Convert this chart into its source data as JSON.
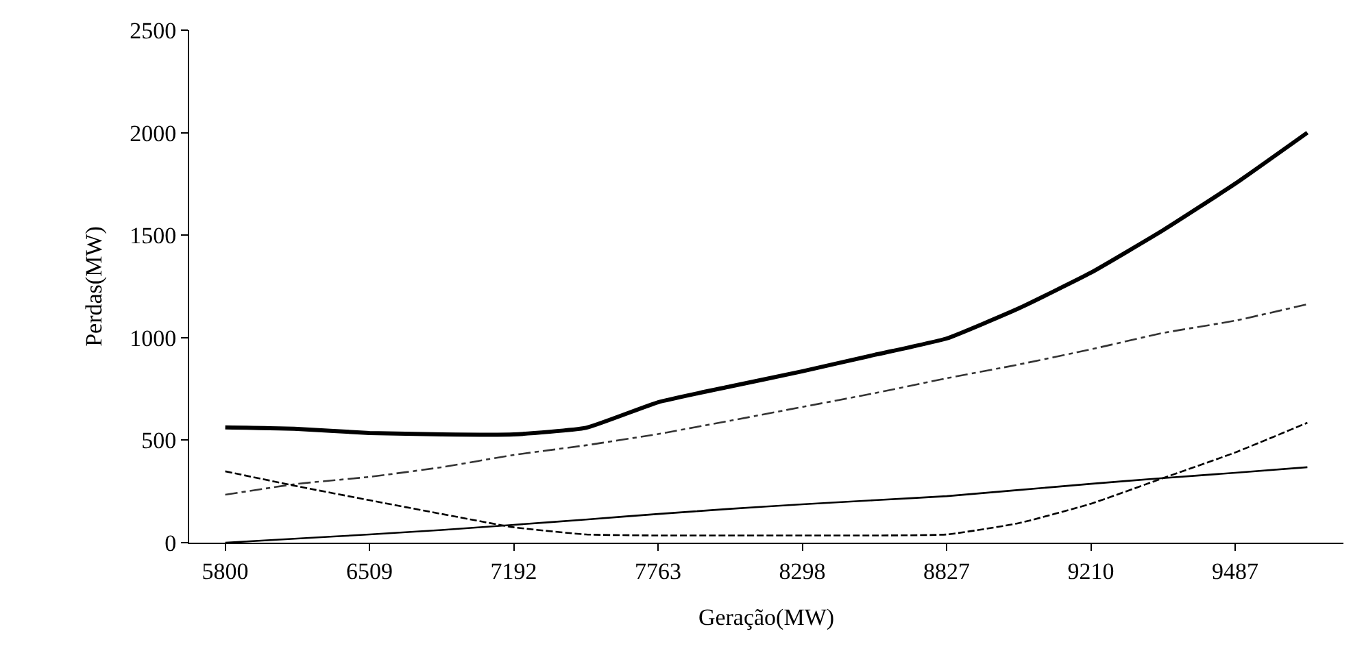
{
  "chart_data": {
    "type": "line",
    "xlabel": "Geração(MW)",
    "ylabel": "Perdas(MW)",
    "categories": [
      "5800",
      null,
      "6509",
      null,
      "7192",
      null,
      "7763",
      null,
      "8298",
      null,
      "8827",
      null,
      "9210",
      null,
      "9487",
      null
    ],
    "ylim": [
      0,
      2500
    ],
    "yticks": [
      0,
      500,
      1000,
      1500,
      2000,
      2500
    ],
    "marker": "none",
    "series": [
      {
        "color": "#000000",
        "line_style": "solid",
        "values": [
          562,
          555,
          535,
          528,
          528,
          560,
          685,
          762,
          836,
          916,
          996,
          1143,
          1317,
          1524,
          1751,
          2000
        ]
      },
      {
        "color": "#333333",
        "line_style": "dashdot",
        "values": [
          234,
          287,
          321,
          368,
          428,
          475,
          530,
          595,
          662,
          729,
          802,
          869,
          943,
          1023,
          1083,
          1163
        ]
      },
      {
        "color": "#000000",
        "line_style": "dashed",
        "values": [
          348,
          275,
          207,
          140,
          75,
          40,
          35,
          35,
          35,
          35,
          40,
          95,
          190,
          315,
          440,
          585
        ]
      },
      {
        "color": "#000000",
        "line_style": "solid",
        "values": [
          0,
          20,
          40,
          62,
          87,
          113,
          140,
          165,
          187,
          207,
          227,
          257,
          287,
          315,
          341,
          368
        ]
      }
    ]
  }
}
